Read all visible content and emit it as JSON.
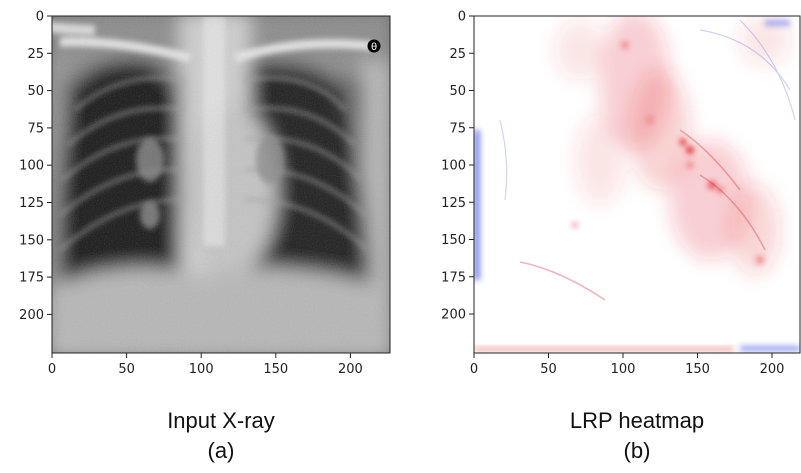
{
  "panels": [
    {
      "id": "a",
      "caption_title": "Input X-ray",
      "caption_label": "(a)",
      "x_ticks": [
        "0",
        "50",
        "100",
        "150",
        "200"
      ],
      "y_ticks": [
        "0",
        "25",
        "50",
        "75",
        "100",
        "125",
        "150",
        "175",
        "200"
      ],
      "corner_marking": "θ"
    },
    {
      "id": "b",
      "caption_title": "LRP heatmap",
      "caption_label": "(b)",
      "x_ticks": [
        "0",
        "50",
        "100",
        "150",
        "200"
      ],
      "y_ticks": [
        "0",
        "25",
        "50",
        "75",
        "100",
        "125",
        "150",
        "175",
        "200"
      ]
    }
  ],
  "colors": {
    "positive_relevance": "#e0282e",
    "negative_relevance": "#2a3adf",
    "axis": "#222222"
  }
}
